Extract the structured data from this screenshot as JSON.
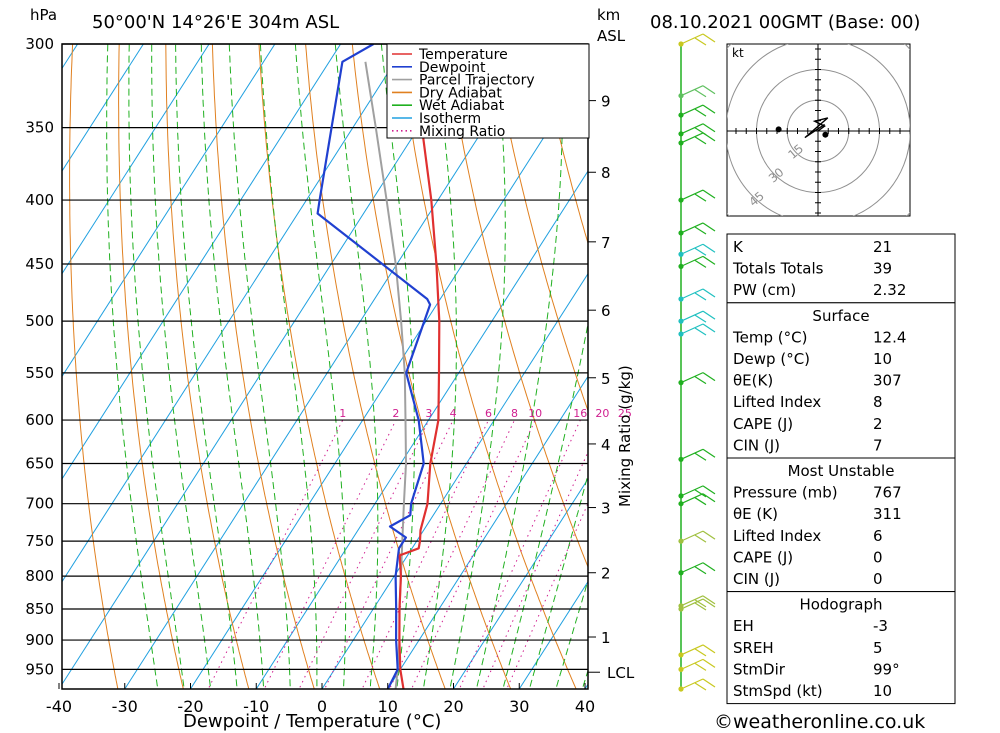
{
  "header": {
    "p_unit": "hPa",
    "location": "50°00'N 14°26'E 304m ASL",
    "km_label": "km",
    "asl_label": "ASL",
    "datetime": "08.10.2021 00GMT (Base: 00)"
  },
  "footer": {
    "xlabel": "Dewpoint / Temperature (°C)",
    "credit": "©weatheronline.co.uk"
  },
  "mixing_label": "Mixing Ratio (g/kg)",
  "lcl_label": "LCL",
  "hodograph": {
    "unit": "kt",
    "ring_labels": [
      "15",
      "30",
      "45"
    ],
    "trace": [
      [
        0.0,
        0.0
      ],
      [
        2.0,
        1.5
      ],
      [
        -1.0,
        3.0
      ],
      [
        3.0,
        4.0
      ],
      [
        -4.0,
        -2.0
      ],
      [
        2.0,
        2.0
      ]
    ],
    "storm_motion": [
      4.0,
      -2.0
    ],
    "mean_wind": [
      -12.0,
      0.5
    ]
  },
  "legend": [
    {
      "label": "Temperature",
      "color": "#e03030",
      "style": "solid"
    },
    {
      "label": "Dewpoint",
      "color": "#2040d0",
      "style": "solid"
    },
    {
      "label": "Parcel Trajectory",
      "color": "#a0a0a0",
      "style": "solid"
    },
    {
      "label": "Dry Adiabat",
      "color": "#e08020",
      "style": "solid"
    },
    {
      "label": "Wet Adiabat",
      "color": "#20b020",
      "style": "solid"
    },
    {
      "label": "Isotherm",
      "color": "#20a0e0",
      "style": "solid"
    },
    {
      "label": "Mixing Ratio",
      "color": "#d02090",
      "style": "dotted"
    }
  ],
  "index_tables": [
    {
      "title": "",
      "rows": [
        [
          "K",
          "21"
        ],
        [
          "Totals Totals",
          "39"
        ],
        [
          "PW (cm)",
          "2.32"
        ]
      ]
    },
    {
      "title": "Surface",
      "rows": [
        [
          "Temp (°C)",
          "12.4"
        ],
        [
          "Dewp (°C)",
          "10"
        ],
        [
          "θE(K)",
          "307"
        ],
        [
          "Lifted Index",
          "8"
        ],
        [
          "CAPE (J)",
          "2"
        ],
        [
          "CIN (J)",
          "7"
        ]
      ]
    },
    {
      "title": "Most Unstable",
      "rows": [
        [
          "Pressure (mb)",
          "767"
        ],
        [
          "θE (K)",
          "311"
        ],
        [
          "Lifted Index",
          "6"
        ],
        [
          "CAPE (J)",
          "0"
        ],
        [
          "CIN (J)",
          "0"
        ]
      ]
    },
    {
      "title": "Hodograph",
      "rows": [
        [
          "EH",
          "-3"
        ],
        [
          "SREH",
          "5"
        ],
        [
          "StmDir",
          "99°"
        ],
        [
          "StmSpd (kt)",
          "10"
        ]
      ]
    }
  ],
  "wind_barbs": [
    {
      "p": 300,
      "color": "#c8c820"
    },
    {
      "p": 330,
      "color": "#60c060"
    },
    {
      "p": 342,
      "color": "#20b020"
    },
    {
      "p": 354,
      "color": "#20b020"
    },
    {
      "p": 360,
      "color": "#20b020"
    },
    {
      "p": 400,
      "color": "#20b020"
    },
    {
      "p": 425,
      "color": "#20b020"
    },
    {
      "p": 442,
      "color": "#20c0c0"
    },
    {
      "p": 452,
      "color": "#20b020"
    },
    {
      "p": 480,
      "color": "#20c0c0"
    },
    {
      "p": 500,
      "color": "#20c0c0"
    },
    {
      "p": 512,
      "color": "#20c0c0"
    },
    {
      "p": 560,
      "color": "#20b020"
    },
    {
      "p": 645,
      "color": "#20b020"
    },
    {
      "p": 690,
      "color": "#20b020"
    },
    {
      "p": 700,
      "color": "#20b020"
    },
    {
      "p": 750,
      "color": "#a0c040"
    },
    {
      "p": 795,
      "color": "#20b020"
    },
    {
      "p": 845,
      "color": "#a0c040"
    },
    {
      "p": 850,
      "color": "#a0c040"
    },
    {
      "p": 925,
      "color": "#c8c820"
    },
    {
      "p": 950,
      "color": "#c8c820"
    },
    {
      "p": 985,
      "color": "#c8c820"
    }
  ],
  "chart_data": {
    "type": "line",
    "title": "50°00'N 14°26'E 304m ASL",
    "xlabel": "Dewpoint / Temperature (°C)",
    "ylabel": "hPa",
    "xlim": [
      -40,
      40
    ],
    "ylim": [
      300,
      985
    ],
    "log_y": true,
    "skew_deg_per_decade": 121.7,
    "x_ticks": [
      -40,
      -30,
      -20,
      -10,
      0,
      10,
      20,
      30,
      40
    ],
    "p_ticks": [
      300,
      350,
      400,
      450,
      500,
      550,
      600,
      650,
      700,
      750,
      800,
      850,
      900,
      950
    ],
    "km_ticks": [
      1,
      2,
      3,
      4,
      5,
      6,
      7,
      8,
      9
    ],
    "km_pressures": [
      895,
      795,
      705,
      627,
      555,
      490,
      432,
      380,
      333
    ],
    "lcl_pressure": 955,
    "mixing_ratio_labels": [
      "1",
      "2",
      "3",
      "4",
      "6",
      "8",
      "10",
      "16",
      "20",
      "25"
    ],
    "mixing_ratio_values": [
      1,
      2,
      3,
      4,
      6,
      8,
      10,
      16,
      20,
      25
    ],
    "mixing_label_pressure": 600,
    "grid": true,
    "legend_position": "top-right",
    "series": [
      {
        "name": "Temperature",
        "color": "#e03030",
        "p": [
          985,
          950,
          900,
          850,
          800,
          770,
          760,
          750,
          735,
          700,
          650,
          600,
          550,
          500,
          450,
          400,
          350,
          300
        ],
        "t": [
          12.4,
          10.0,
          7.0,
          4.0,
          1.0,
          -1.2,
          1.0,
          0.5,
          -0.5,
          -2.0,
          -5.5,
          -8.5,
          -13.0,
          -18.0,
          -24.0,
          -31.0,
          -39.5,
          -49.0
        ]
      },
      {
        "name": "Dewpoint",
        "color": "#2040d0",
        "p": [
          985,
          950,
          900,
          850,
          800,
          760,
          745,
          730,
          715,
          700,
          650,
          600,
          550,
          485,
          480,
          410,
          400,
          310,
          300
        ],
        "t": [
          10.0,
          9.6,
          6.5,
          3.5,
          0.2,
          -2.0,
          -2.0,
          -5.5,
          -3.5,
          -4.5,
          -6.5,
          -11.5,
          -18.0,
          -21.0,
          -22.0,
          -47.0,
          -48.0,
          -58.0,
          -55.0
        ]
      },
      {
        "name": "Parcel Trajectory",
        "color": "#a0a0a0",
        "p": [
          985,
          950,
          900,
          850,
          800,
          750,
          700,
          650,
          600,
          550,
          500,
          450,
          400,
          350,
          310
        ],
        "t": [
          11.2,
          9.6,
          7.0,
          4.0,
          1.0,
          -2.2,
          -5.6,
          -9.2,
          -13.5,
          -18.2,
          -23.8,
          -30.2,
          -37.8,
          -46.5,
          -54.5
        ]
      }
    ]
  }
}
